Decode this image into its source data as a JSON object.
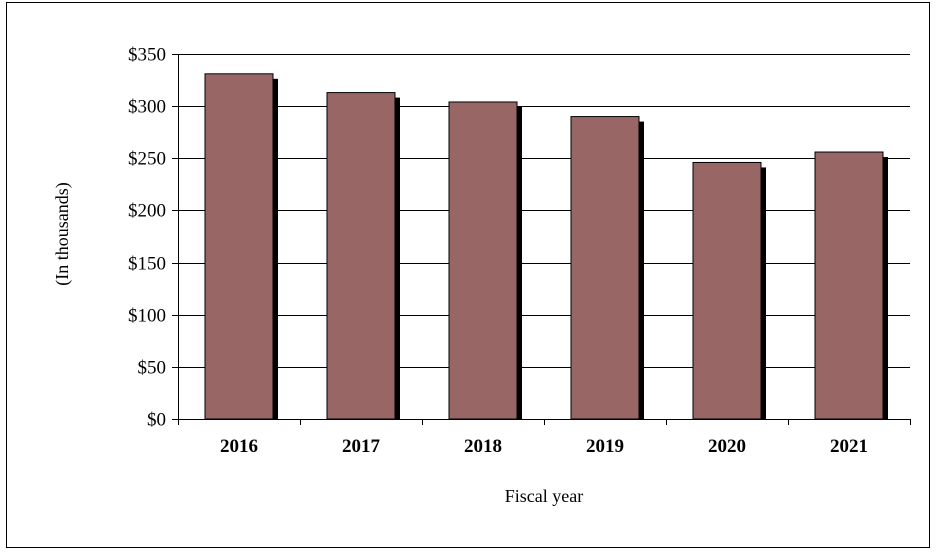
{
  "chart_data": {
    "type": "bar",
    "title": "",
    "xlabel": "Fiscal year",
    "ylabel": "(In thousands)",
    "categories": [
      "2016",
      "2017",
      "2018",
      "2019",
      "2020",
      "2021"
    ],
    "values": [
      331,
      313,
      304,
      290,
      246,
      256
    ],
    "ylim": [
      0,
      350
    ],
    "yticks": [
      0,
      50,
      100,
      150,
      200,
      250,
      300,
      350
    ],
    "ytick_labels": [
      "$0",
      "$50",
      "$100",
      "$150",
      "$200",
      "$250",
      "$300",
      "$350"
    ],
    "grid": true,
    "legend": "none",
    "colors": {
      "bar": "#996666",
      "bar_shadow": "#000000",
      "grid": "#000000",
      "axis": "#000000"
    }
  }
}
